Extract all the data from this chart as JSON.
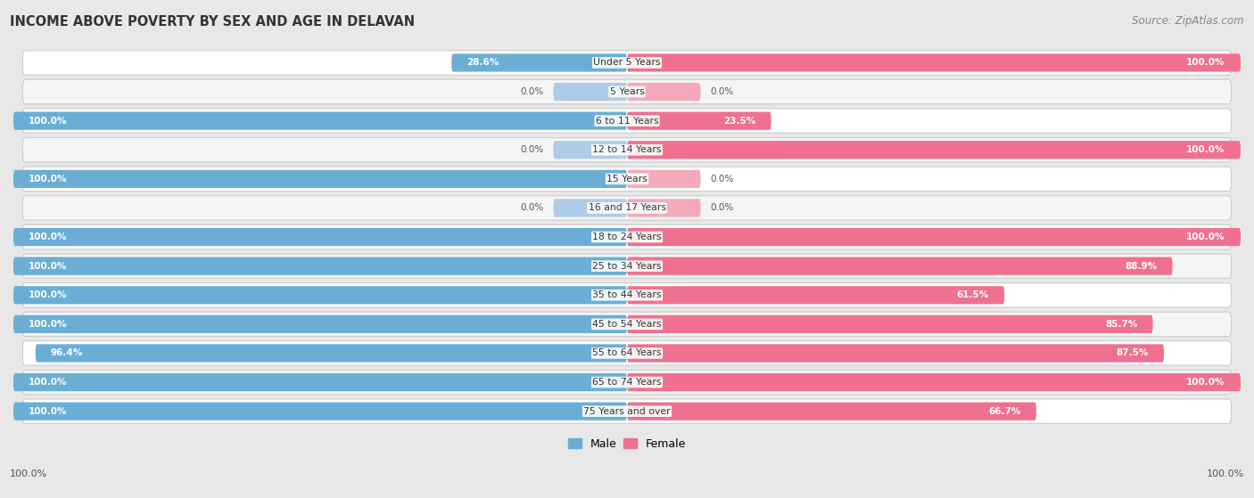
{
  "title": "INCOME ABOVE POVERTY BY SEX AND AGE IN DELAVAN",
  "source": "Source: ZipAtlas.com",
  "categories": [
    "Under 5 Years",
    "5 Years",
    "6 to 11 Years",
    "12 to 14 Years",
    "15 Years",
    "16 and 17 Years",
    "18 to 24 Years",
    "25 to 34 Years",
    "35 to 44 Years",
    "45 to 54 Years",
    "55 to 64 Years",
    "65 to 74 Years",
    "75 Years and over"
  ],
  "male": [
    28.6,
    0.0,
    100.0,
    0.0,
    100.0,
    0.0,
    100.0,
    100.0,
    100.0,
    100.0,
    96.4,
    100.0,
    100.0
  ],
  "female": [
    100.0,
    0.0,
    23.5,
    100.0,
    0.0,
    0.0,
    100.0,
    88.9,
    61.5,
    85.7,
    87.5,
    100.0,
    66.7
  ],
  "male_color": "#6aaed6",
  "female_color": "#f07090",
  "male_color_light": "#aecce8",
  "female_color_light": "#f4aabb",
  "bg_color": "#e8e8e8",
  "row_bg_color": "#f5f5f5",
  "row_alt_bg_color": "#ffffff",
  "max_value": 100.0,
  "bar_height": 0.62
}
